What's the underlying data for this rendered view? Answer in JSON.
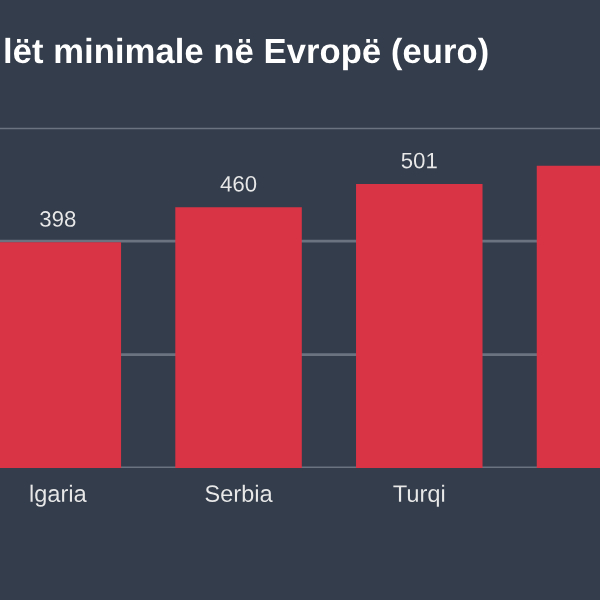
{
  "chart_data": {
    "type": "bar",
    "title": "lët minimale në Evropë (euro)",
    "categories": [
      "lgaria",
      "Serbia",
      "Turqi",
      null
    ],
    "values": [
      398,
      460,
      501,
      533
    ],
    "value_labels": [
      "398",
      "460",
      "501",
      null
    ],
    "color": "#d93446",
    "ylim": [
      0,
      600
    ],
    "yticks": [
      {
        "value": 0,
        "label": null
      },
      {
        "value": 200,
        "label": null
      },
      {
        "value": 400,
        "label": null
      },
      {
        "value": 600,
        "label": null
      }
    ],
    "tick_labels": "x",
    "grid": "y"
  }
}
